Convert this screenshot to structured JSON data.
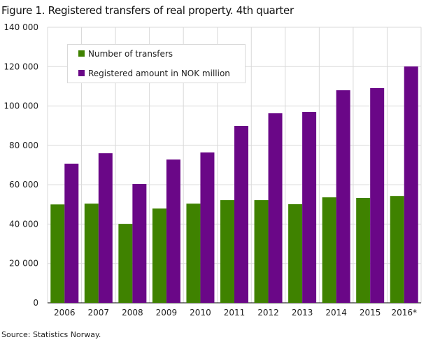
{
  "title": "Figure 1. Registered transfers of real property. 4th quarter",
  "source": "Source: Statistics Norway.",
  "chart_data": {
    "type": "bar",
    "title": "Figure 1. Registered transfers of real property. 4th quarter",
    "xlabel": "",
    "ylabel": "",
    "categories": [
      "2006",
      "2007",
      "2008",
      "2009",
      "2010",
      "2011",
      "2012",
      "2013",
      "2014",
      "2015",
      "2016*"
    ],
    "series": [
      {
        "name": "Number of transfers",
        "color": "#3f8200",
        "values": [
          50000,
          50400,
          40100,
          47900,
          50400,
          52200,
          52200,
          50100,
          53600,
          53300,
          54300
        ]
      },
      {
        "name": "Registered amount in NOK million",
        "color": "#6a0787",
        "values": [
          70700,
          76000,
          60400,
          72800,
          76400,
          89900,
          96300,
          97000,
          108000,
          109100,
          120100
        ]
      }
    ],
    "ylim": [
      0,
      140000
    ],
    "yticks": [
      0,
      20000,
      40000,
      60000,
      80000,
      100000,
      120000,
      140000
    ],
    "ytick_labels": [
      "0",
      "20 000",
      "40 000",
      "60 000",
      "80 000",
      "100 000",
      "120 000",
      "140 000"
    ],
    "grid": true,
    "legend": "top-left"
  }
}
